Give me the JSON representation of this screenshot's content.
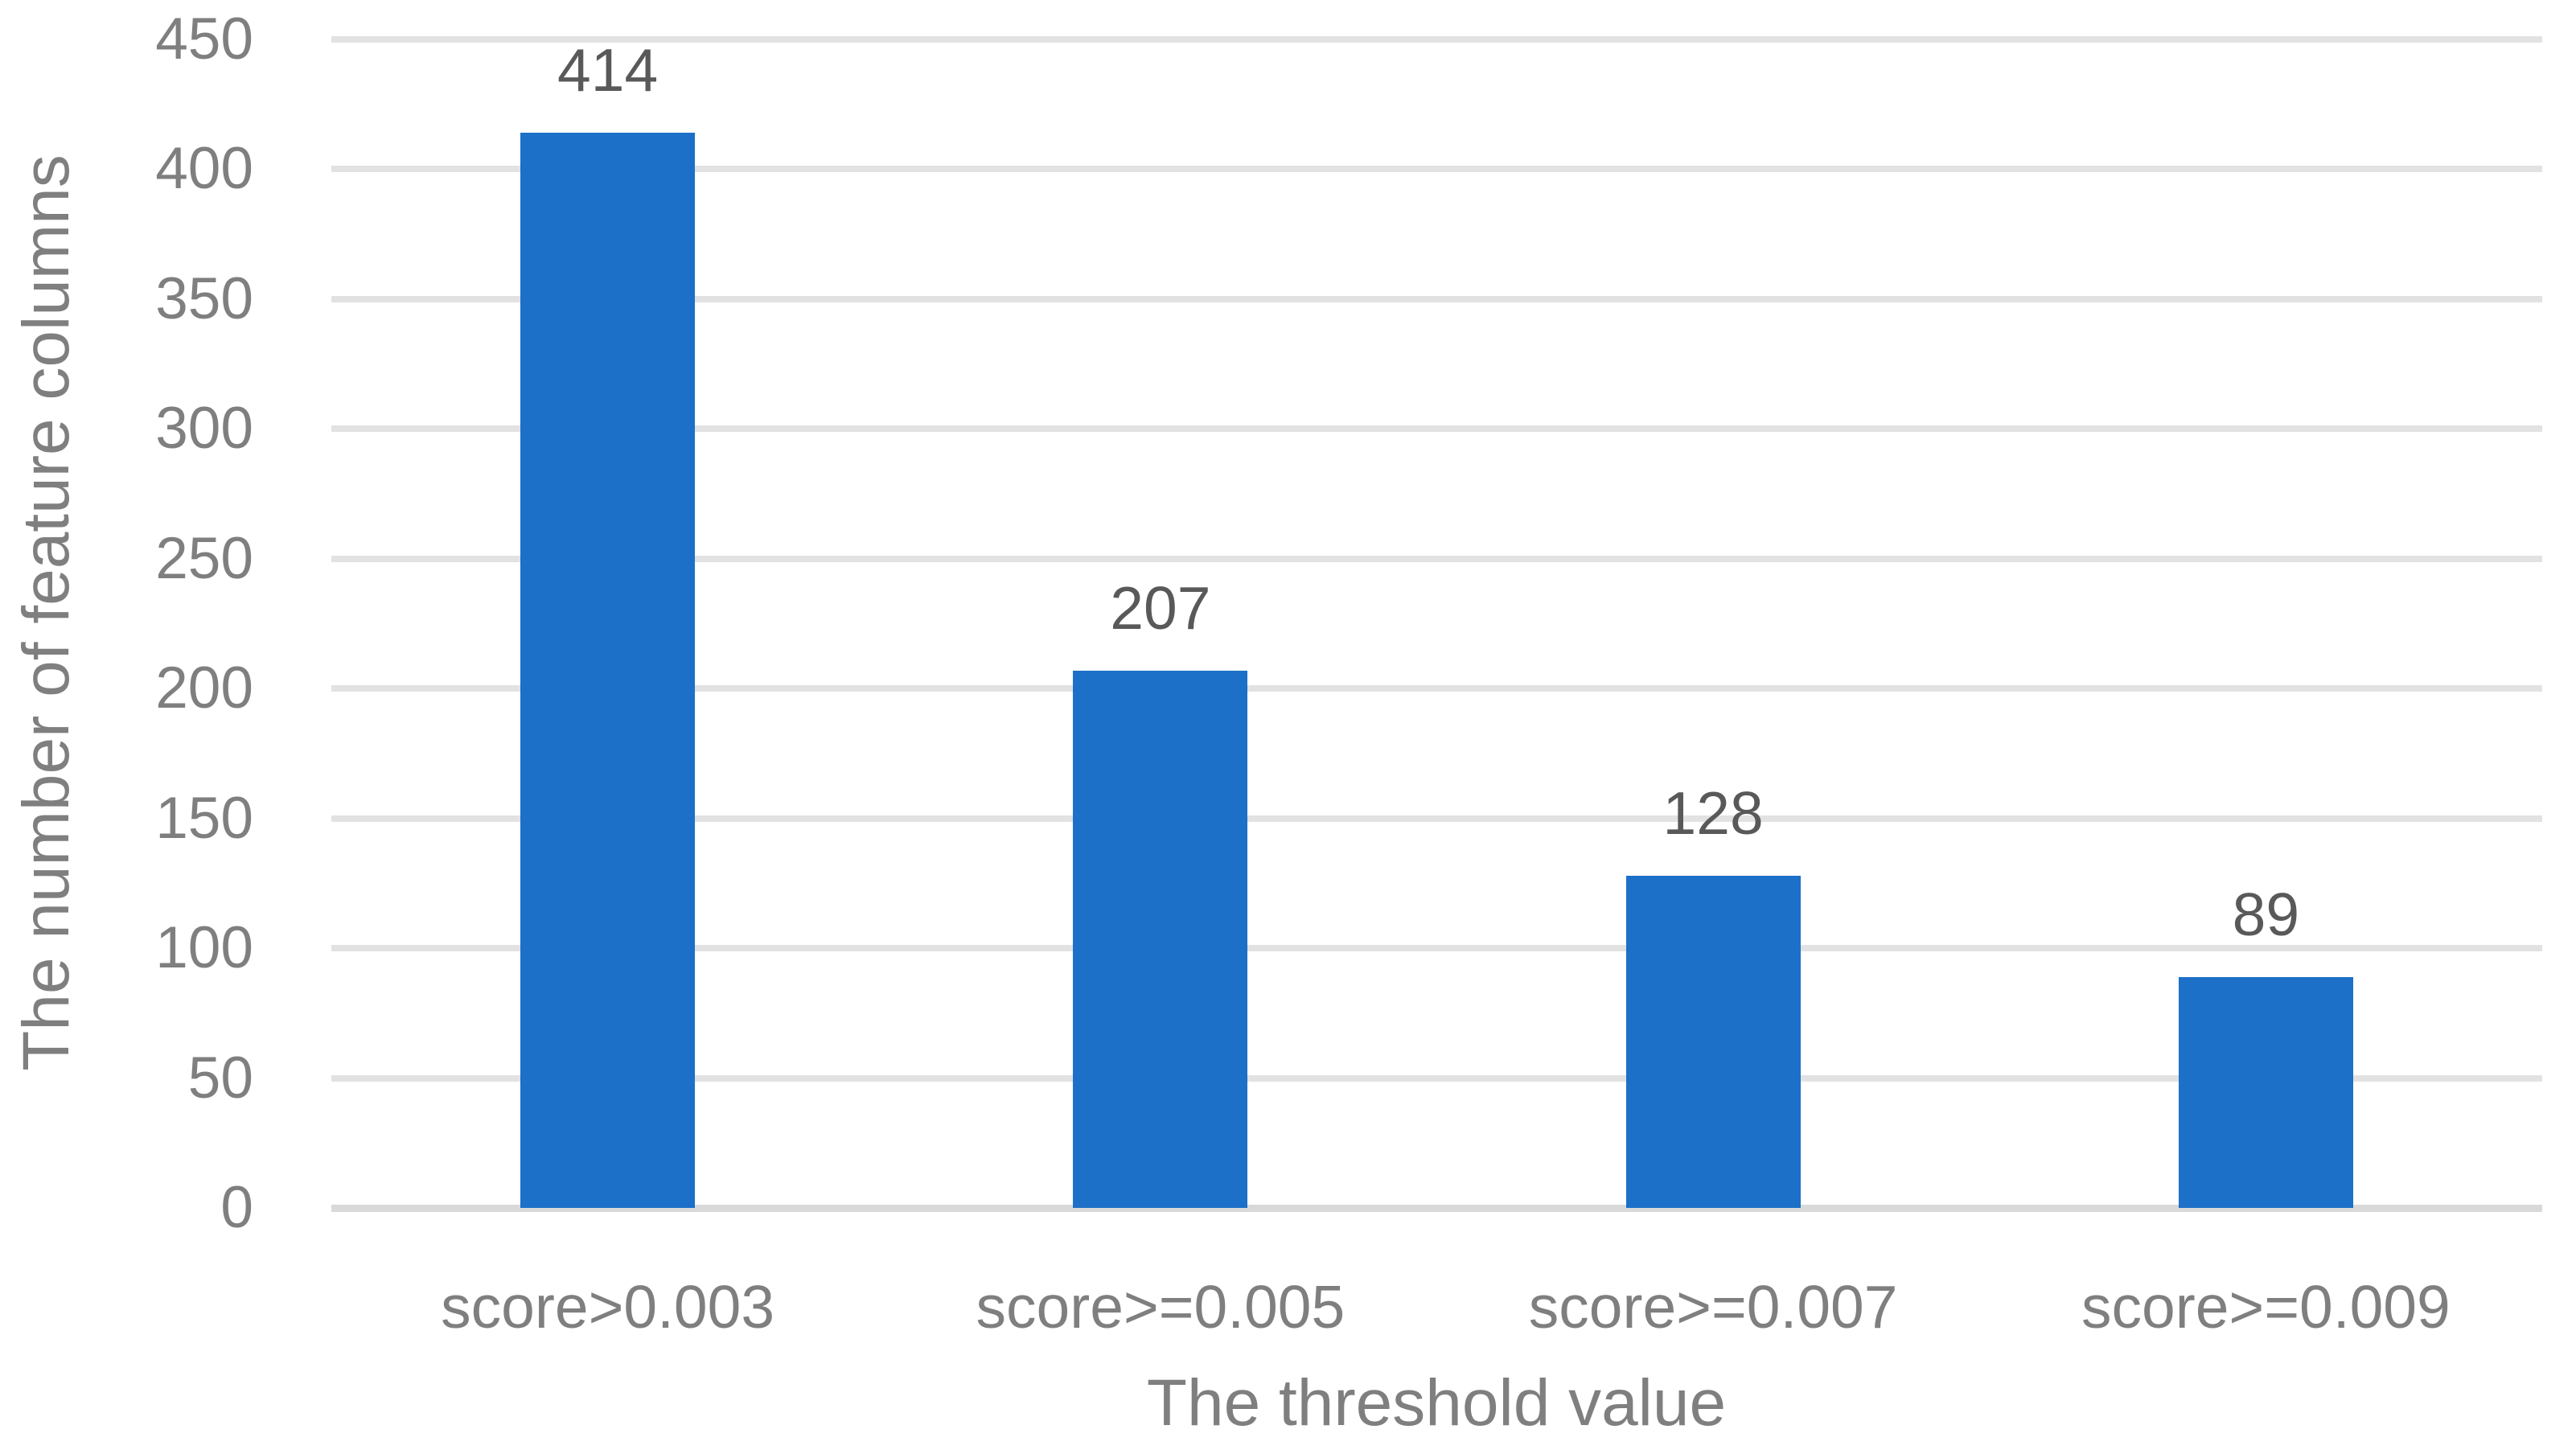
{
  "chart_data": {
    "type": "bar",
    "title": "",
    "categories": [
      "score>0.003",
      "score>=0.005",
      "score>=0.007",
      "score>=0.009"
    ],
    "values": [
      414,
      207,
      128,
      89
    ],
    "xlabel": "The threshold value",
    "ylabel": "The number of feature columns",
    "ylim": [
      0,
      450
    ],
    "yticks": [
      0,
      50,
      100,
      150,
      200,
      250,
      300,
      350,
      400,
      450
    ],
    "grid": "horizontal",
    "legend": "none",
    "bar_color": "#1C70C8",
    "gridline_color": "#E2E2E2",
    "axis_label_color": "#7F7F7F",
    "data_label_color": "#595959"
  }
}
